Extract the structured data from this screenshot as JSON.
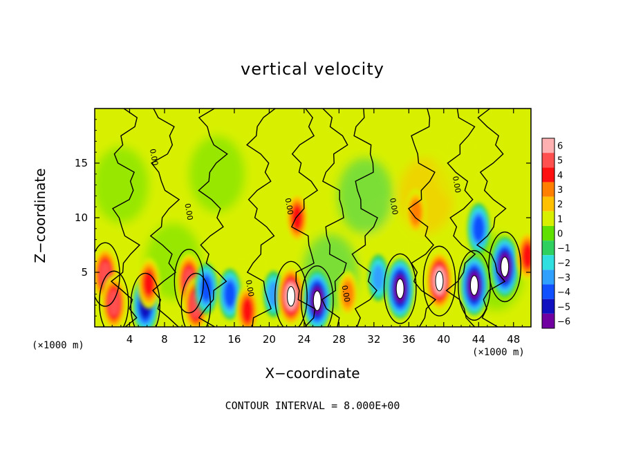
{
  "chart_data": {
    "type": "heatmap",
    "title": "vertical velocity",
    "xlabel": "X−coordinate",
    "ylabel": "Z−coordinate",
    "x_unit_label_left": "(×1000 m)",
    "x_unit_label_right": "(×1000 m)",
    "footer": "CONTOUR INTERVAL = 8.000E+00",
    "xlim": [
      0,
      50
    ],
    "ylim": [
      0,
      20
    ],
    "x_ticks": [
      4,
      8,
      12,
      16,
      20,
      24,
      28,
      32,
      36,
      40,
      44,
      48
    ],
    "y_ticks": [
      5,
      10,
      15
    ],
    "contour_label": "0.00",
    "colorbar": {
      "levels": [
        6,
        5,
        4,
        3,
        2,
        1,
        0,
        -1,
        -2,
        -3,
        -4,
        -5,
        -6
      ],
      "colors": [
        "#ffb0b0",
        "#ff5050",
        "#ff1010",
        "#ff8000",
        "#ffc000",
        "#d8f000",
        "#60e000",
        "#30d060",
        "#30e0e0",
        "#30a0ff",
        "#1050ff",
        "#1010c0",
        "#7000a0"
      ]
    },
    "features": [
      {
        "x": 1.2,
        "z": 4.8,
        "w": 5,
        "kind": "updraft"
      },
      {
        "x": 2.2,
        "z": 2.2,
        "w": 5,
        "kind": "updraft"
      },
      {
        "x": 5.8,
        "z": 2.0,
        "w": -5,
        "kind": "downdraft"
      },
      {
        "x": 6.2,
        "z": 4.0,
        "w": 4,
        "kind": "updraft"
      },
      {
        "x": 10.8,
        "z": 4.2,
        "w": 5,
        "kind": "updraft"
      },
      {
        "x": 11.6,
        "z": 2.0,
        "w": 5,
        "kind": "updraft"
      },
      {
        "x": 12.8,
        "z": 3.5,
        "w": -4,
        "kind": "downdraft"
      },
      {
        "x": 15.5,
        "z": 3.0,
        "w": -4,
        "kind": "downdraft"
      },
      {
        "x": 17.5,
        "z": 1.5,
        "w": 4,
        "kind": "updraft"
      },
      {
        "x": 20.5,
        "z": 3.0,
        "w": -3,
        "kind": "downdraft"
      },
      {
        "x": 22.5,
        "z": 2.8,
        "w": 6,
        "kind": "updraft"
      },
      {
        "x": 23.2,
        "z": 10.0,
        "w": 4,
        "kind": "updraft"
      },
      {
        "x": 25.5,
        "z": 2.4,
        "w": -6,
        "kind": "downdraft"
      },
      {
        "x": 29.0,
        "z": 3.0,
        "w": 3,
        "kind": "updraft"
      },
      {
        "x": 32.5,
        "z": 4.5,
        "w": -3,
        "kind": "downdraft"
      },
      {
        "x": 35.0,
        "z": 3.5,
        "w": -6,
        "kind": "downdraft"
      },
      {
        "x": 36.8,
        "z": 10.5,
        "w": 3,
        "kind": "updraft"
      },
      {
        "x": 39.5,
        "z": 4.2,
        "w": 6,
        "kind": "updraft"
      },
      {
        "x": 43.5,
        "z": 3.8,
        "w": -6,
        "kind": "downdraft"
      },
      {
        "x": 44.0,
        "z": 9.0,
        "w": -4,
        "kind": "downdraft"
      },
      {
        "x": 47.0,
        "z": 5.5,
        "w": -6,
        "kind": "downdraft"
      },
      {
        "x": 49.6,
        "z": 6.5,
        "w": 4,
        "kind": "updraft"
      }
    ]
  }
}
